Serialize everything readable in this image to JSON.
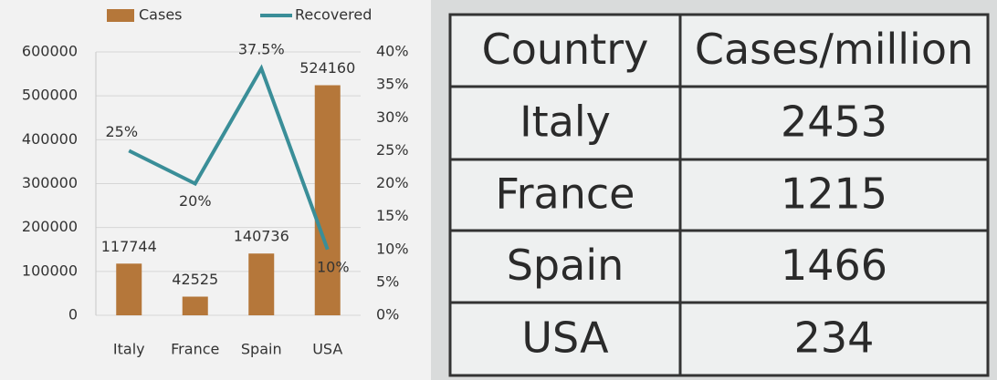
{
  "chart_data": {
    "type": "bar",
    "categories": [
      "Italy",
      "France",
      "Spain",
      "USA"
    ],
    "series": [
      {
        "name": "Cases",
        "type": "bar",
        "color": "#b5773a",
        "values": [
          117744,
          42525,
          140736,
          524160
        ]
      },
      {
        "name": "Recovered",
        "type": "line",
        "color": "#3a8e98",
        "axis": "y2",
        "values": [
          25,
          20,
          37.5,
          10
        ],
        "value_labels": [
          "25%",
          "20%",
          "37.5%",
          "10%"
        ]
      }
    ],
    "ylim": [
      0,
      600000
    ],
    "yticks": [
      0,
      100000,
      200000,
      300000,
      400000,
      500000,
      600000
    ],
    "y2lim": [
      0,
      40
    ],
    "y2ticks": [
      {
        "value": 0,
        "label": "0%"
      },
      {
        "value": 5,
        "label": "5%"
      },
      {
        "value": 10,
        "label": "10%"
      },
      {
        "value": 15,
        "label": "15%"
      },
      {
        "value": 20,
        "label": "20%"
      },
      {
        "value": 25,
        "label": "25%"
      },
      {
        "value": 30,
        "label": "30%"
      },
      {
        "value": 35,
        "label": "35%"
      },
      {
        "value": 40,
        "label": "40%"
      }
    ],
    "grid": true,
    "legend": "top"
  },
  "table": {
    "header": [
      "Country",
      "Cases/million"
    ],
    "rows": [
      [
        "Italy",
        2453
      ],
      [
        "France",
        1215
      ],
      [
        "Spain",
        1466
      ],
      [
        "USA",
        234
      ]
    ]
  }
}
